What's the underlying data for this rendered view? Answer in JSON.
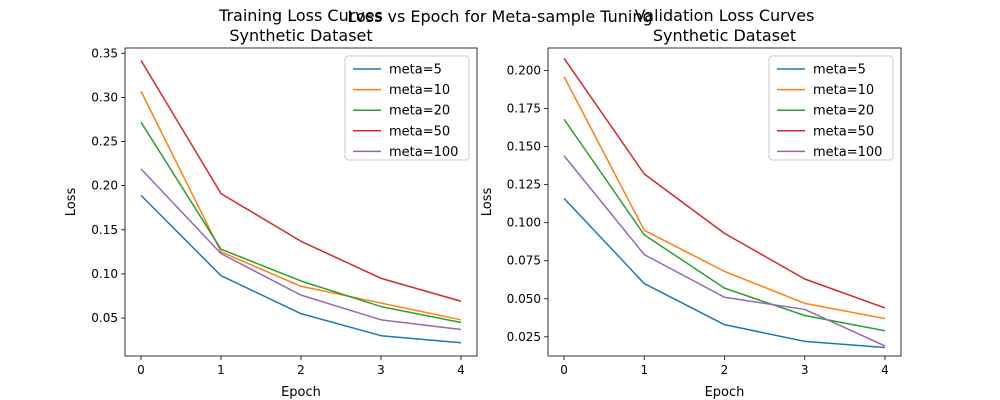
{
  "suptitle": "Loss vs Epoch for Meta-sample Tuning",
  "chart_data": [
    {
      "type": "line",
      "title": "Training Loss Curves\nSynthetic Dataset",
      "xlabel": "Epoch",
      "ylabel": "Loss",
      "x": [
        0,
        1,
        2,
        3,
        4
      ],
      "xlim": [
        -0.2,
        4.2
      ],
      "ylim": [
        0.007,
        0.356
      ],
      "xticks": [
        0,
        1,
        2,
        3,
        4
      ],
      "yticks": [
        0.05,
        0.1,
        0.15,
        0.2,
        0.25,
        0.3,
        0.35
      ],
      "ytick_labels": [
        "0.05",
        "0.10",
        "0.15",
        "0.20",
        "0.25",
        "0.30",
        "0.35"
      ],
      "legend_position": "upper right",
      "series": [
        {
          "name": "meta=5",
          "color": "#1f77b4",
          "values": [
            0.189,
            0.098,
            0.055,
            0.03,
            0.022
          ]
        },
        {
          "name": "meta=10",
          "color": "#ff7f0e",
          "values": [
            0.307,
            0.125,
            0.086,
            0.067,
            0.048
          ]
        },
        {
          "name": "meta=20",
          "color": "#2ca02c",
          "values": [
            0.272,
            0.128,
            0.092,
            0.063,
            0.045
          ]
        },
        {
          "name": "meta=50",
          "color": "#d62728",
          "values": [
            0.342,
            0.191,
            0.137,
            0.095,
            0.069
          ]
        },
        {
          "name": "meta=100",
          "color": "#9467bd",
          "values": [
            0.219,
            0.123,
            0.076,
            0.048,
            0.037
          ]
        }
      ]
    },
    {
      "type": "line",
      "title": "Validation Loss Curves\nSynthetic Dataset",
      "xlabel": "Epoch",
      "ylabel": "Loss",
      "x": [
        0,
        1,
        2,
        3,
        4
      ],
      "xlim": [
        -0.2,
        4.2
      ],
      "ylim": [
        0.0124,
        0.2148
      ],
      "xticks": [
        0,
        1,
        2,
        3,
        4
      ],
      "yticks": [
        0.025,
        0.05,
        0.075,
        0.1,
        0.125,
        0.15,
        0.175,
        0.2
      ],
      "ytick_labels": [
        "0.025",
        "0.050",
        "0.075",
        "0.100",
        "0.125",
        "0.150",
        "0.175",
        "0.200"
      ],
      "legend_position": "upper right",
      "series": [
        {
          "name": "meta=5",
          "color": "#1f77b4",
          "values": [
            0.116,
            0.06,
            0.033,
            0.022,
            0.018
          ]
        },
        {
          "name": "meta=10",
          "color": "#ff7f0e",
          "values": [
            0.196,
            0.095,
            0.068,
            0.047,
            0.037
          ]
        },
        {
          "name": "meta=20",
          "color": "#2ca02c",
          "values": [
            0.168,
            0.092,
            0.057,
            0.039,
            0.029
          ]
        },
        {
          "name": "meta=50",
          "color": "#d62728",
          "values": [
            0.208,
            0.132,
            0.093,
            0.063,
            0.044
          ]
        },
        {
          "name": "meta=100",
          "color": "#9467bd",
          "values": [
            0.144,
            0.079,
            0.051,
            0.043,
            0.019
          ]
        }
      ]
    }
  ]
}
